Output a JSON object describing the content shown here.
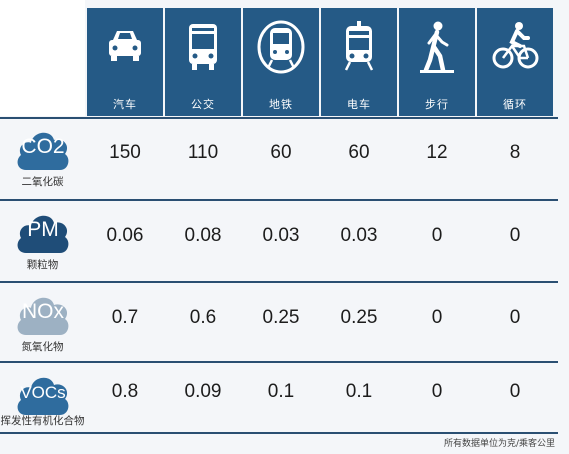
{
  "chart_data": {
    "type": "table",
    "columns": [
      "汽车",
      "公交",
      "地铁",
      "电车",
      "步行",
      "循环"
    ],
    "column_icons": [
      "car-icon",
      "bus-icon",
      "metro-icon",
      "tram-icon",
      "walking-icon",
      "bicycle-icon"
    ],
    "rows": [
      {
        "code": "CO2",
        "name": "二氧化碳",
        "badge_color": "#2f6c9e",
        "values": [
          "150",
          "110",
          "60",
          "60",
          "12",
          "8"
        ]
      },
      {
        "code": "PM",
        "name": "颗粒物",
        "badge_color": "#1f4d78",
        "values": [
          "0.06",
          "0.08",
          "0.03",
          "0.03",
          "0",
          "0"
        ]
      },
      {
        "code": "NOx",
        "name": "氮氧化物",
        "badge_color": "#9db1c3",
        "values": [
          "0.7",
          "0.6",
          "0.25",
          "0.25",
          "0",
          "0"
        ]
      },
      {
        "code": "VOCs",
        "name": "挥发性有机化合物",
        "badge_color": "#2f6c9e",
        "values": [
          "0.8",
          "0.09",
          "0.1",
          "0.1",
          "0",
          "0"
        ]
      }
    ],
    "footnote": "所有数据单位为克/乘客公里"
  },
  "colors": {
    "header_bg": "#255a86",
    "divider": "#2a4f72"
  }
}
